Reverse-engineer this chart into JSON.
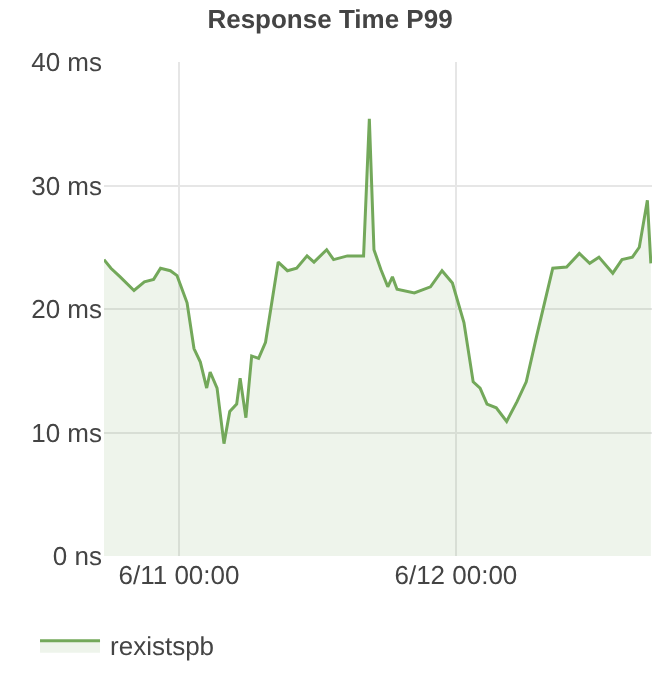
{
  "chart_data": {
    "type": "area",
    "title": "Response Time P99",
    "x": [
      "--06-10T17:30",
      "--06-10T18:06",
      "--06-10T18:54",
      "--06-10T20:06",
      "--06-10T21:00",
      "--06-10T21:48",
      "--06-10T22:24",
      "--06-10T23:15",
      "--06-10T23:50",
      "--06-11T00:42",
      "--06-11T01:18",
      "--06-11T01:51",
      "--06-11T02:24",
      "--06-11T02:42",
      "--06-11T03:18",
      "--06-11T03:54",
      "--06-11T04:24",
      "--06-11T05:00",
      "--06-11T05:18",
      "--06-11T05:48",
      "--06-11T06:18",
      "--06-11T06:54",
      "--06-11T07:30",
      "--06-11T08:36",
      "--06-11T09:24",
      "--06-11T10:12",
      "--06-11T11:06",
      "--06-11T11:42",
      "--06-11T12:48",
      "--06-11T13:24",
      "--06-11T14:36",
      "--06-11T16:00",
      "--06-11T16:30",
      "--06-11T16:54",
      "--06-11T17:30",
      "--06-11T18:06",
      "--06-11T18:30",
      "--06-11T18:54",
      "--06-11T20:24",
      "--06-11T21:48",
      "--06-11T22:48",
      "--06-11T23:42",
      "--06-12T00:42",
      "--06-12T01:30",
      "--06-12T02:06",
      "--06-12T02:42",
      "--06-12T03:30",
      "--06-12T04:24",
      "--06-12T05:18",
      "--06-12T06:06",
      "--06-12T07:00",
      "--06-12T08:24",
      "--06-12T09:36",
      "--06-12T10:42",
      "--06-12T11:36",
      "--06-12T12:24",
      "--06-12T13:36",
      "--06-12T14:24",
      "--06-12T15:18",
      "--06-12T15:54",
      "--06-12T16:36",
      "--06-12T16:54"
    ],
    "series": [
      {
        "name": "rexistspb",
        "color": "#73a85a",
        "values": [
          24.0,
          23.3,
          22.6,
          21.5,
          22.2,
          22.4,
          23.3,
          23.1,
          22.7,
          20.5,
          16.8,
          15.7,
          13.6,
          14.9,
          13.6,
          9.1,
          11.7,
          12.3,
          14.4,
          11.2,
          16.2,
          16.0,
          17.3,
          23.8,
          23.1,
          23.3,
          24.3,
          23.8,
          24.8,
          24.0,
          24.3,
          24.3,
          35.4,
          24.8,
          23.2,
          21.8,
          22.6,
          21.6,
          21.3,
          21.8,
          23.1,
          22.1,
          18.9,
          14.1,
          13.6,
          12.3,
          12.0,
          10.9,
          12.5,
          14.1,
          17.8,
          23.3,
          23.4,
          24.5,
          23.7,
          24.2,
          22.9,
          24.0,
          24.2,
          25.0,
          28.8,
          23.7
        ]
      }
    ],
    "xlim": [
      "--06-10T17:30",
      "--06-12T17:00"
    ],
    "xticks": [
      {
        "value": "--06-11T00:00",
        "label": "6/11 00:00"
      },
      {
        "value": "--06-12T00:00",
        "label": "6/12 00:00"
      }
    ],
    "ylim": [
      0,
      40
    ],
    "yticks": [
      {
        "value": 0,
        "label": "0 ns"
      },
      {
        "value": 10,
        "label": "10 ms"
      },
      {
        "value": 20,
        "label": "20 ms"
      },
      {
        "value": 30,
        "label": "30 ms"
      },
      {
        "value": 40,
        "label": "40 ms"
      }
    ],
    "grid": true,
    "legend": "bottom left",
    "marker": "none",
    "line_style": "solid"
  }
}
